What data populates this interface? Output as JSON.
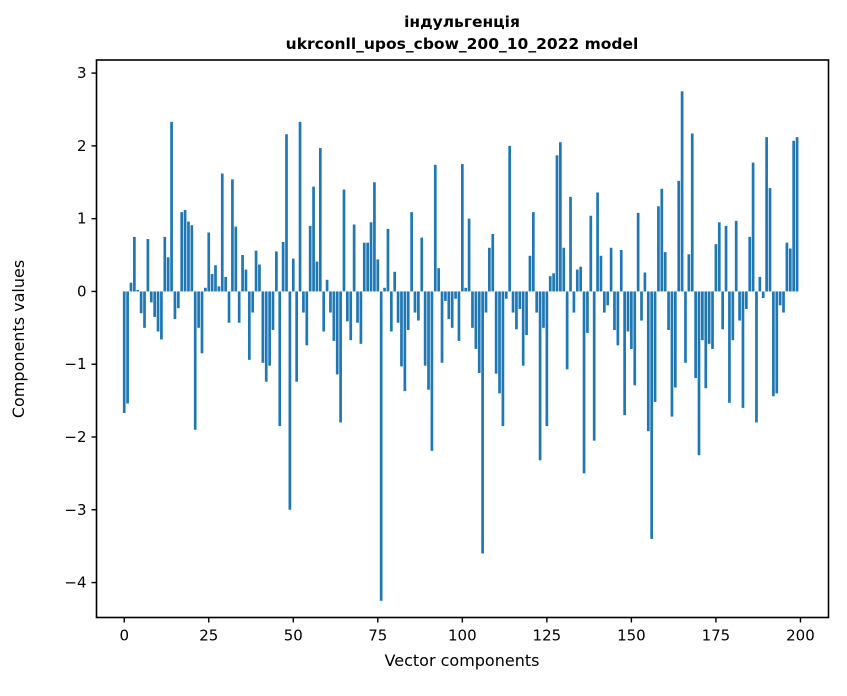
{
  "title": {
    "line1": "індульгенція",
    "line2": "ukrconll_upos_cbow_200_10_2022 model"
  },
  "chart_data": {
    "type": "bar",
    "title": "індульгенція",
    "subtitle": "ukrconll_upos_cbow_200_10_2022 model",
    "xlabel": "Vector components",
    "ylabel": "Components values",
    "x_ticks": [
      0,
      25,
      50,
      75,
      100,
      125,
      150,
      175,
      200
    ],
    "y_ticks": [
      3,
      2,
      1,
      0,
      -1,
      -2,
      -3,
      -4
    ],
    "xlim": [
      -8.2,
      208.3
    ],
    "ylim": [
      -4.48,
      3.18
    ],
    "grid": false,
    "legend": "none",
    "bar_color": "#1f77b4",
    "bar_rel_width": 0.8,
    "values": [
      -1.67,
      -1.54,
      0.12,
      0.75,
      0.02,
      -0.3,
      -0.5,
      0.72,
      -0.15,
      -0.35,
      -0.55,
      -0.66,
      0.75,
      0.47,
      2.33,
      -0.38,
      -0.23,
      1.09,
      1.12,
      0.96,
      0.91,
      -1.9,
      -0.5,
      -0.85,
      0.05,
      0.81,
      0.24,
      0.36,
      0.07,
      1.62,
      0.2,
      -0.43,
      1.54,
      0.89,
      -0.43,
      0.5,
      0.3,
      -0.94,
      -0.29,
      0.56,
      0.37,
      -0.98,
      -1.24,
      -1.02,
      -0.53,
      0.55,
      -1.85,
      0.68,
      2.16,
      -3.0,
      0.45,
      -1.24,
      2.33,
      -0.29,
      -0.74,
      0.9,
      1.44,
      0.41,
      1.97,
      -0.55,
      0.16,
      -0.29,
      -0.68,
      -1.14,
      -1.8,
      1.4,
      -0.41,
      -0.67,
      0.92,
      -0.43,
      -0.72,
      0.67,
      0.67,
      0.95,
      1.5,
      0.44,
      -4.25,
      0.05,
      0.86,
      -0.55,
      0.27,
      -0.43,
      -1.03,
      -1.37,
      -0.53,
      1.09,
      -0.29,
      -0.4,
      0.74,
      -1.02,
      -1.35,
      -2.19,
      1.74,
      0.32,
      -0.98,
      -0.13,
      -0.38,
      -0.5,
      -0.1,
      -0.68,
      1.75,
      0.05,
      1.0,
      -0.5,
      -0.79,
      -1.12,
      -3.6,
      -0.29,
      0.6,
      0.79,
      -1.13,
      -1.4,
      -1.85,
      -0.1,
      2.0,
      -0.29,
      -0.52,
      -0.24,
      -1.02,
      -0.6,
      0.49,
      1.09,
      -0.29,
      -2.32,
      -0.5,
      -1.85,
      0.21,
      0.25,
      1.87,
      2.05,
      0.6,
      -1.07,
      1.3,
      -0.29,
      0.3,
      0.34,
      -2.5,
      -0.57,
      1.04,
      -2.05,
      1.36,
      0.49,
      -0.29,
      -0.19,
      0.6,
      -0.53,
      -0.74,
      0.57,
      -1.7,
      -0.55,
      -0.79,
      -1.29,
      1.08,
      -0.4,
      0.26,
      -1.92,
      -3.4,
      -1.52,
      1.17,
      1.41,
      0.54,
      -0.53,
      -1.72,
      -1.32,
      1.52,
      2.75,
      -0.98,
      0.51,
      2.17,
      -1.19,
      -2.25,
      -0.67,
      -1.33,
      -0.72,
      -0.79,
      0.65,
      0.95,
      -0.52,
      0.9,
      -1.53,
      -0.67,
      0.97,
      -0.4,
      -1.6,
      -0.24,
      0.75,
      1.77,
      -1.8,
      0.2,
      -0.09,
      2.12,
      1.42,
      -1.44,
      -1.4,
      -0.19,
      -0.29,
      0.67,
      0.59,
      2.07,
      2.12
    ]
  }
}
